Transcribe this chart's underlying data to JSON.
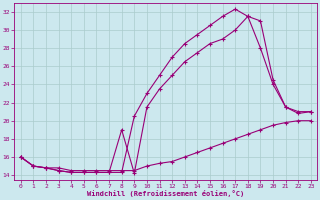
{
  "xlabel": "Windchill (Refroidissement éolien,°C)",
  "bg_color": "#cce8ee",
  "line_color": "#990077",
  "grid_color": "#aacccc",
  "xlim": [
    -0.5,
    23.5
  ],
  "ylim": [
    13.5,
    33.0
  ],
  "yticks": [
    14,
    16,
    18,
    20,
    22,
    24,
    26,
    28,
    30,
    32
  ],
  "xticks": [
    0,
    1,
    2,
    3,
    4,
    5,
    6,
    7,
    8,
    9,
    10,
    11,
    12,
    13,
    14,
    15,
    16,
    17,
    18,
    19,
    20,
    21,
    22,
    23
  ],
  "series1_x": [
    0,
    1,
    2,
    3,
    4,
    5,
    6,
    7,
    8,
    9,
    10,
    11,
    12,
    13,
    14,
    15,
    16,
    17,
    18,
    19,
    20,
    21,
    22,
    23
  ],
  "series1_y": [
    16.0,
    15.0,
    14.8,
    14.8,
    14.5,
    14.5,
    14.5,
    14.5,
    14.5,
    14.5,
    15.0,
    15.3,
    15.5,
    16.0,
    16.5,
    17.0,
    17.5,
    18.0,
    18.5,
    19.0,
    19.5,
    19.8,
    20.0,
    20.0
  ],
  "series2_x": [
    0,
    1,
    2,
    3,
    4,
    5,
    6,
    7,
    8,
    9,
    10,
    11,
    12,
    13,
    14,
    15,
    16,
    17,
    18,
    19,
    20,
    21,
    22,
    23
  ],
  "series2_y": [
    16.0,
    15.0,
    14.8,
    14.5,
    14.3,
    14.3,
    14.3,
    14.3,
    19.0,
    14.2,
    21.5,
    23.5,
    25.0,
    26.5,
    27.5,
    28.5,
    29.0,
    30.0,
    31.5,
    28.0,
    24.0,
    21.5,
    20.8,
    21.0
  ],
  "series3_x": [
    0,
    1,
    2,
    3,
    4,
    5,
    6,
    7,
    8,
    9,
    10,
    11,
    12,
    13,
    14,
    15,
    16,
    17,
    18,
    19,
    20,
    21,
    22,
    23
  ],
  "series3_y": [
    16.0,
    15.0,
    14.8,
    14.5,
    14.3,
    14.3,
    14.3,
    14.3,
    14.3,
    20.5,
    23.0,
    25.0,
    27.0,
    28.5,
    29.5,
    30.5,
    31.5,
    32.3,
    31.5,
    31.0,
    24.5,
    21.5,
    21.0,
    21.0
  ]
}
